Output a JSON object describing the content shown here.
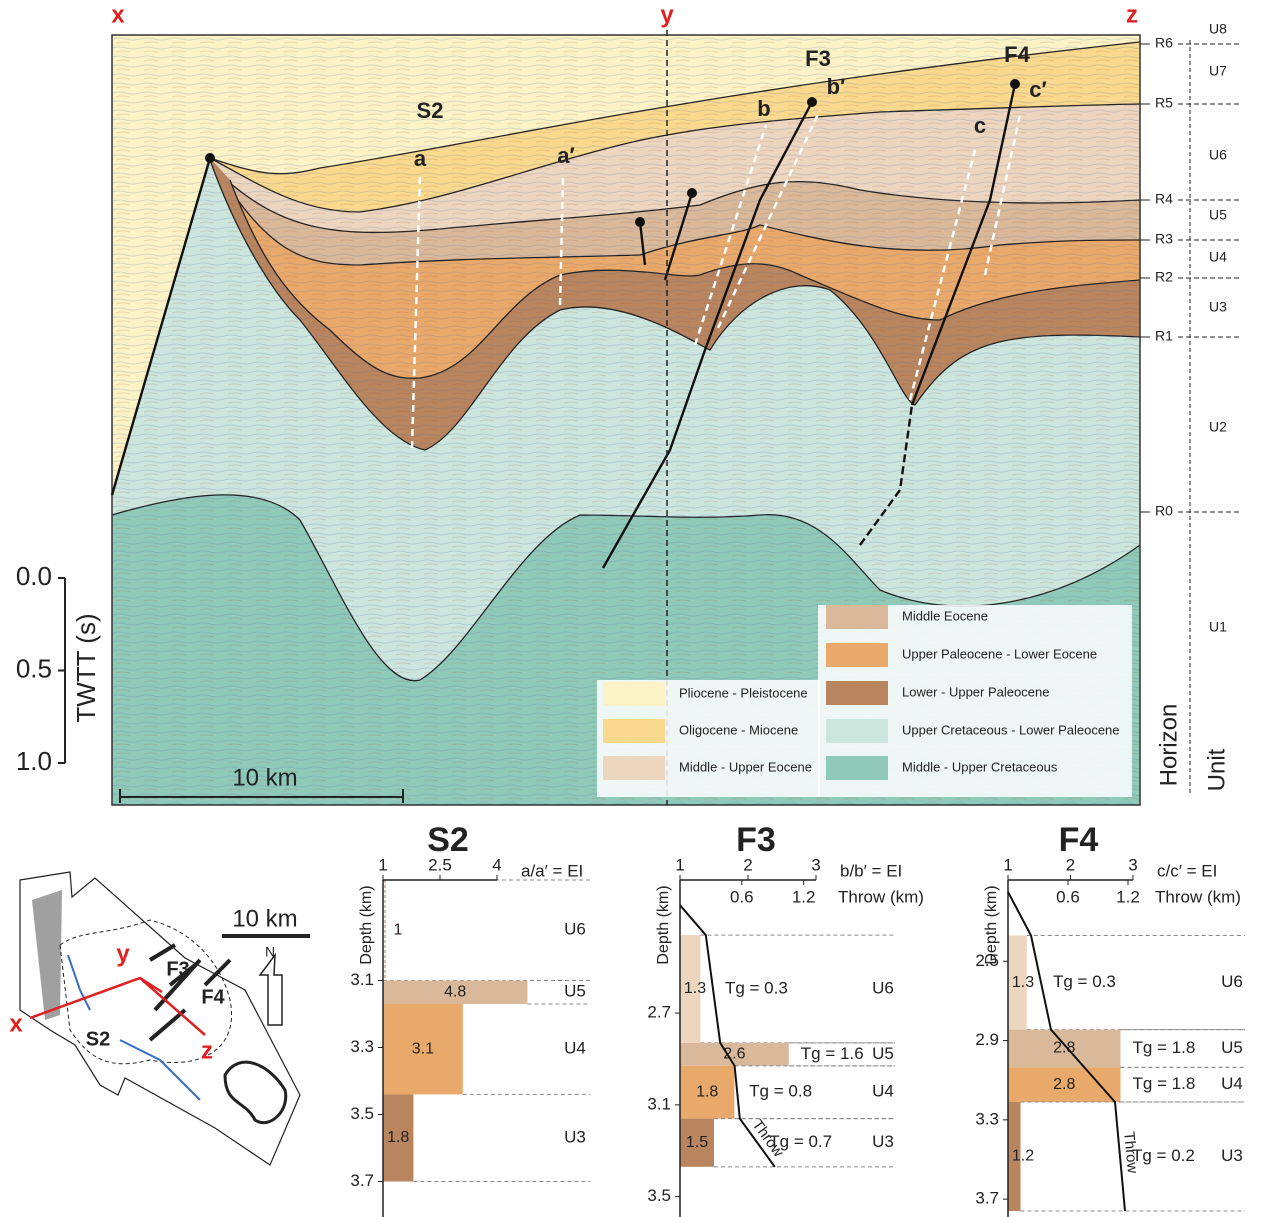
{
  "section": {
    "ends": [
      "x",
      "y",
      "z"
    ],
    "structures": [
      "S2",
      "F3",
      "F4"
    ],
    "markers": [
      "a",
      "a′",
      "b",
      "b′",
      "c",
      "c′"
    ],
    "scale_bar": "10 km",
    "twtt": {
      "title": "TWTT (s)",
      "lim": [
        0,
        1
      ],
      "ticks": [
        {
          "value": 0,
          "label": "0.0"
        },
        0.5,
        {
          "value": 1,
          "label": "1.0"
        }
      ]
    },
    "horizon_title": "Horizon",
    "unit_title": "Unit",
    "horizons": [
      "R6",
      "R5",
      "R4",
      "R3",
      "R2",
      "R1",
      "R0"
    ],
    "units": [
      "U8",
      "U7",
      "U6",
      "U5",
      "U4",
      "U3",
      "U2",
      "U1"
    ],
    "legend": [
      {
        "label": "Pliocene - Pleistocene",
        "color": "#fbf3c6"
      },
      {
        "label": "Oligocene - Miocene",
        "color": "#f9d98e"
      },
      {
        "label": "Middle - Upper Eocene",
        "color": "#ecd6c0"
      },
      {
        "label": "Middle Eocene",
        "color": "#d9b99a"
      },
      {
        "label": "Upper Paleocene - Lower Eocene",
        "color": "#e9a96b"
      },
      {
        "label": "Lower - Upper Paleocene",
        "color": "#b8855e"
      },
      {
        "label": "Upper Cretaceous - Lower Paleocene",
        "color": "#cce6de"
      },
      {
        "label": "Middle - Upper Cretaceous",
        "color": "#8fcab8"
      }
    ]
  },
  "map": {
    "labels": [
      "x",
      "y",
      "z",
      "S2",
      "F3",
      "F4"
    ],
    "scale_bar": "10 km",
    "north": "N"
  },
  "panels": [
    {
      "title": "S2",
      "depth_title": "Depth (km)",
      "ei_title": "a/a′ = EI",
      "ei_lim": [
        1,
        4
      ],
      "ei_ticks": [
        1,
        2.5,
        4
      ],
      "depth_lim": [
        2.8,
        3.8
      ],
      "depth_ticks": [
        3.1,
        3.3,
        3.5,
        3.7
      ],
      "units": [
        {
          "name": "U6",
          "top": 2.8,
          "bottom": 3.1,
          "ei": 1,
          "color": "#b8855e"
        },
        {
          "name": "U5",
          "top": 3.1,
          "bottom": 3.17,
          "ei": 4.8,
          "color": "#d9b99a"
        },
        {
          "name": "U4",
          "top": 3.17,
          "bottom": 3.44,
          "ei": 3.1,
          "color": "#e9a96b"
        },
        {
          "name": "U3",
          "top": 3.44,
          "bottom": 3.7,
          "ei": 1.8,
          "color": "#b8855e"
        }
      ]
    },
    {
      "title": "F3",
      "depth_title": "Depth (km)",
      "ei_title": "b/b′ = EI",
      "throw_title": "Throw (km)",
      "ei_lim": [
        1,
        3
      ],
      "ei_ticks": [
        1,
        2,
        3
      ],
      "throw_lim": [
        0,
        1.32
      ],
      "throw_ticks": [
        0.6,
        1.2
      ],
      "depth_lim": [
        2.12,
        3.58
      ],
      "depth_ticks": [
        2.7,
        3.1,
        3.5
      ],
      "throw_label": "Throw",
      "throw": {
        "depth": [
          2.23,
          2.36,
          2.83,
          2.93,
          3.16,
          3.37
        ],
        "values": [
          0,
          0.25,
          0.39,
          0.53,
          0.58,
          0.92
        ]
      },
      "units": [
        {
          "name": "U6",
          "top": 2.36,
          "bottom": 2.83,
          "ei": 1.3,
          "tg": "Tg = 0.3",
          "color": "#ecd6c0"
        },
        {
          "name": "U5",
          "top": 2.83,
          "bottom": 2.93,
          "ei": 2.6,
          "tg": "Tg = 1.6",
          "color": "#d9b99a"
        },
        {
          "name": "U4",
          "top": 2.93,
          "bottom": 3.16,
          "ei": 1.8,
          "tg": "Tg = 0.8",
          "color": "#e9a96b"
        },
        {
          "name": "U3",
          "top": 3.16,
          "bottom": 3.37,
          "ei": 1.5,
          "tg": "Tg = 0.7",
          "color": "#b8855e"
        }
      ]
    },
    {
      "title": "F4",
      "depth_title": "Depth (km)",
      "ei_title": "c/c′ = EI",
      "throw_title": "Throw (km)",
      "ei_lim": [
        1,
        3
      ],
      "ei_ticks": [
        1,
        2,
        3
      ],
      "throw_lim": [
        0,
        1.25
      ],
      "throw_ticks": [
        0.6,
        1.2
      ],
      "depth_lim": [
        2.09,
        3.78
      ],
      "depth_ticks": [
        2.5,
        2.9,
        3.3,
        3.7
      ],
      "throw_label": "Throw",
      "throw": {
        "depth": [
          2.15,
          2.37,
          2.845,
          3.21,
          3.76
        ],
        "values": [
          0,
          0.23,
          0.43,
          1.07,
          1.17
        ]
      },
      "units": [
        {
          "name": "U6",
          "top": 2.37,
          "bottom": 2.845,
          "ei": 1.3,
          "tg": "Tg = 0.3",
          "color": "#ecd6c0"
        },
        {
          "name": "U5",
          "top": 2.845,
          "bottom": 3.035,
          "ei": 2.8,
          "tg": "Tg = 1.8",
          "color": "#d9b99a"
        },
        {
          "name": "U4",
          "top": 3.035,
          "bottom": 3.21,
          "ei": 2.8,
          "tg": "Tg = 1.8",
          "color": "#e9a96b"
        },
        {
          "name": "U3",
          "top": 3.21,
          "bottom": 3.76,
          "ei": 1.2,
          "tg": "Tg = 0.2",
          "color": "#b8855e"
        }
      ]
    }
  ]
}
